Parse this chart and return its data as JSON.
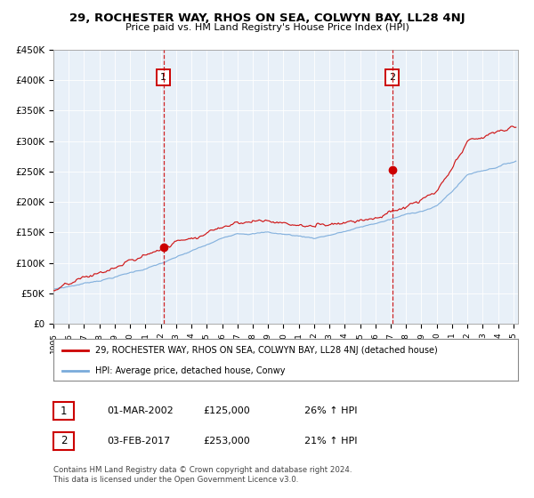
{
  "title": "29, ROCHESTER WAY, RHOS ON SEA, COLWYN BAY, LL28 4NJ",
  "subtitle": "Price paid vs. HM Land Registry's House Price Index (HPI)",
  "legend_line1": "29, ROCHESTER WAY, RHOS ON SEA, COLWYN BAY, LL28 4NJ (detached house)",
  "legend_line2": "HPI: Average price, detached house, Conwy",
  "annotation1_label": "1",
  "annotation1_date": "01-MAR-2002",
  "annotation1_price": "£125,000",
  "annotation1_hpi": "26% ↑ HPI",
  "annotation2_label": "2",
  "annotation2_date": "03-FEB-2017",
  "annotation2_price": "£253,000",
  "annotation2_hpi": "21% ↑ HPI",
  "footer1": "Contains HM Land Registry data © Crown copyright and database right 2024.",
  "footer2": "This data is licensed under the Open Government Licence v3.0.",
  "plot_bg": "#e8f0f8",
  "red_line_color": "#cc0000",
  "blue_line_color": "#7aabdb",
  "vline_color": "#cc0000",
  "marker_color": "#cc0000",
  "ylim_min": 0,
  "ylim_max": 450000,
  "yticks": [
    0,
    50000,
    100000,
    150000,
    200000,
    250000,
    300000,
    350000,
    400000,
    450000
  ],
  "ytick_labels": [
    "£0",
    "£50K",
    "£100K",
    "£150K",
    "£200K",
    "£250K",
    "£300K",
    "£350K",
    "£400K",
    "£450K"
  ],
  "year_start": 1995,
  "year_end": 2025,
  "sale1_year": 2002.17,
  "sale1_price": 125000,
  "sale2_year": 2017.09,
  "sale2_price": 253000
}
